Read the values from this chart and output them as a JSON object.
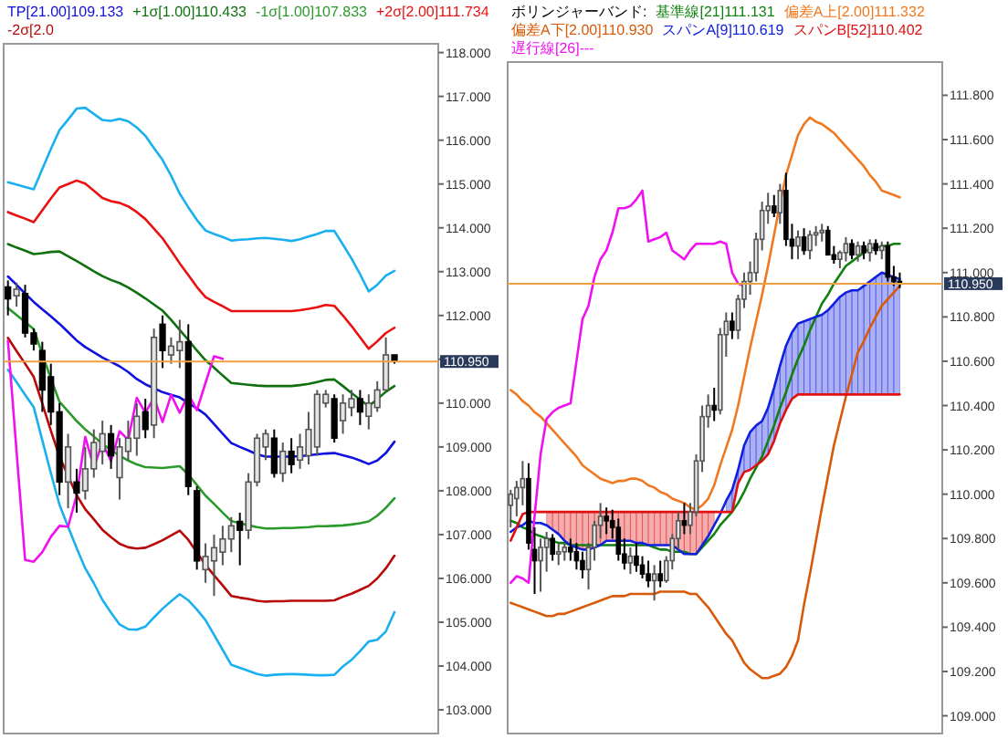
{
  "chart_data": [
    {
      "type": "candlestick",
      "categories": [
        null,
        null,
        null,
        null,
        null,
        null,
        null,
        null,
        null,
        null,
        null,
        null,
        null,
        null,
        null,
        null,
        null,
        null,
        null,
        null,
        null,
        null,
        null,
        null,
        null,
        null,
        null,
        null,
        null,
        null,
        null,
        null,
        null,
        null,
        null,
        null,
        null,
        null,
        null,
        null,
        null,
        null,
        null,
        null,
        null,
        null
      ],
      "ohlc": [
        [
          112.65,
          112.8,
          112.0,
          112.38
        ],
        [
          112.45,
          112.75,
          112.2,
          112.6
        ],
        [
          112.5,
          112.7,
          111.5,
          111.6
        ],
        [
          111.6,
          111.7,
          111.2,
          111.35
        ],
        [
          111.2,
          111.4,
          109.8,
          110.3
        ],
        [
          110.6,
          110.9,
          109.5,
          109.8
        ],
        [
          109.8,
          110.0,
          107.9,
          108.2
        ],
        [
          108.2,
          109.3,
          107.6,
          109.0
        ],
        [
          108.2,
          108.5,
          107.5,
          107.95
        ],
        [
          108.0,
          109.0,
          107.8,
          108.5
        ],
        [
          108.5,
          109.4,
          108.3,
          109.1
        ],
        [
          108.9,
          109.6,
          108.6,
          109.3
        ],
        [
          109.3,
          109.5,
          108.5,
          108.8
        ],
        [
          108.3,
          109.2,
          107.8,
          109.0
        ],
        [
          108.9,
          109.6,
          108.7,
          109.2
        ],
        [
          109.2,
          110.0,
          108.8,
          109.7
        ],
        [
          109.8,
          110.1,
          109.2,
          109.4
        ],
        [
          109.5,
          111.7,
          109.2,
          111.5
        ],
        [
          111.8,
          112.0,
          110.8,
          111.2
        ],
        [
          111.1,
          111.5,
          110.9,
          111.3
        ],
        [
          111.2,
          111.9,
          110.8,
          111.4
        ],
        [
          111.4,
          111.8,
          107.9,
          108.1
        ],
        [
          108.0,
          108.1,
          106.2,
          106.4
        ],
        [
          106.2,
          106.8,
          105.9,
          106.5
        ],
        [
          106.4,
          107.0,
          105.6,
          106.7
        ],
        [
          106.6,
          107.2,
          106.3,
          106.9
        ],
        [
          106.9,
          107.4,
          106.6,
          107.2
        ],
        [
          107.3,
          107.5,
          106.3,
          107.1
        ],
        [
          107.1,
          108.4,
          106.9,
          108.2
        ],
        [
          108.2,
          109.3,
          108.1,
          109.2
        ],
        [
          109.0,
          109.4,
          108.7,
          109.3
        ],
        [
          109.2,
          109.4,
          108.3,
          108.4
        ],
        [
          108.4,
          109.1,
          108.2,
          108.9
        ],
        [
          108.9,
          109.2,
          108.4,
          108.6
        ],
        [
          108.7,
          109.3,
          108.5,
          109.0
        ],
        [
          108.8,
          109.8,
          108.6,
          109.4
        ],
        [
          109.0,
          110.3,
          108.8,
          110.2
        ],
        [
          110.0,
          110.3,
          109.9,
          110.2
        ],
        [
          110.1,
          110.2,
          109.1,
          109.2
        ],
        [
          109.6,
          110.2,
          109.3,
          110.0
        ],
        [
          109.9,
          110.3,
          109.7,
          110.1
        ],
        [
          110.1,
          110.3,
          109.5,
          109.8
        ],
        [
          109.7,
          110.2,
          109.4,
          110.0
        ],
        [
          109.9,
          110.5,
          109.8,
          110.3
        ],
        [
          110.3,
          111.5,
          110.3,
          111.1
        ],
        [
          111.1,
          111.1,
          110.9,
          110.95
        ]
      ],
      "series": [
        {
          "name": "TP[21.00]109.133",
          "type": "line",
          "color": "#1010e0",
          "values": [
            112.89,
            112.7,
            112.5,
            112.31,
            112.14,
            111.98,
            111.81,
            111.62,
            111.43,
            111.28,
            111.16,
            111.04,
            110.94,
            110.84,
            110.71,
            110.55,
            110.43,
            110.34,
            110.25,
            110.19,
            110.13,
            110.0,
            109.88,
            109.74,
            109.52,
            109.3,
            109.09,
            109.0,
            108.92,
            108.83,
            108.78,
            108.78,
            108.78,
            108.78,
            108.79,
            108.81,
            108.83,
            108.85,
            108.86,
            108.81,
            108.76,
            108.69,
            108.61,
            108.69,
            108.86,
            109.12
          ]
        },
        {
          "name": "+1σ[1.00]110.433",
          "type": "line",
          "color": "#107010",
          "values": [
            113.63,
            113.55,
            113.48,
            113.4,
            113.42,
            113.45,
            113.46,
            113.35,
            113.24,
            113.13,
            113.01,
            112.9,
            112.81,
            112.74,
            112.64,
            112.52,
            112.39,
            112.25,
            112.11,
            111.9,
            111.67,
            111.44,
            111.2,
            110.98,
            110.81,
            110.63,
            110.46,
            110.44,
            110.42,
            110.4,
            110.39,
            110.39,
            110.39,
            110.39,
            110.41,
            110.44,
            110.48,
            110.53,
            110.54,
            110.39,
            110.23,
            110.08,
            109.93,
            110.09,
            110.26,
            110.39
          ]
        },
        {
          "name": "-1σ[1.00]107.833",
          "type": "line",
          "color": "#2a9a2a",
          "values": [
            112.17,
            112.01,
            111.85,
            111.69,
            111.12,
            110.56,
            110.03,
            109.81,
            109.59,
            109.4,
            109.24,
            109.07,
            108.93,
            108.8,
            108.69,
            108.6,
            108.54,
            108.53,
            108.52,
            108.54,
            108.56,
            108.37,
            108.13,
            107.89,
            107.7,
            107.5,
            107.31,
            107.26,
            107.21,
            107.17,
            107.14,
            107.14,
            107.15,
            107.15,
            107.16,
            107.17,
            107.19,
            107.19,
            107.2,
            107.21,
            107.23,
            107.26,
            107.3,
            107.43,
            107.61,
            107.83
          ]
        },
        {
          "name": "+2σ[2.00]111.734",
          "type": "line",
          "color": "#e81010",
          "values": [
            114.36,
            114.28,
            114.21,
            114.13,
            114.4,
            114.67,
            114.92,
            115.0,
            115.08,
            115.01,
            114.85,
            114.68,
            114.61,
            114.57,
            114.49,
            114.36,
            114.2,
            113.98,
            113.76,
            113.48,
            113.19,
            112.92,
            112.65,
            112.42,
            112.31,
            112.21,
            112.1,
            112.1,
            112.1,
            112.1,
            112.1,
            112.1,
            112.1,
            112.1,
            112.12,
            112.15,
            112.19,
            112.24,
            112.22,
            112.0,
            111.76,
            111.5,
            111.24,
            111.41,
            111.6,
            111.72
          ]
        },
        {
          "name": "-2σ[2.0",
          "type": "line",
          "color": "#b80808",
          "values": [
            111.49,
            111.19,
            110.9,
            110.6,
            109.99,
            109.37,
            108.78,
            108.34,
            107.9,
            107.58,
            107.35,
            107.11,
            106.94,
            106.79,
            106.71,
            106.68,
            106.7,
            106.78,
            106.87,
            106.98,
            107.09,
            106.88,
            106.59,
            106.31,
            106.07,
            105.84,
            105.6,
            105.56,
            105.53,
            105.49,
            105.47,
            105.48,
            105.48,
            105.49,
            105.49,
            105.49,
            105.49,
            105.49,
            105.5,
            105.58,
            105.65,
            105.74,
            105.83,
            106.0,
            106.23,
            106.52
          ]
        },
        {
          "type": "line",
          "color": "#1ab0f0",
          "values": [
            115.04,
            114.99,
            114.93,
            114.88,
            115.34,
            115.8,
            116.23,
            116.47,
            116.72,
            116.74,
            116.6,
            116.46,
            116.44,
            116.49,
            116.43,
            116.29,
            116.1,
            115.82,
            115.55,
            115.19,
            114.78,
            114.47,
            114.18,
            113.94,
            113.86,
            113.79,
            113.71,
            113.73,
            113.74,
            113.76,
            113.77,
            113.75,
            113.73,
            113.7,
            113.74,
            113.8,
            113.86,
            113.93,
            113.93,
            113.62,
            113.3,
            112.94,
            112.55,
            112.7,
            112.91,
            113.02
          ]
        },
        {
          "type": "line",
          "color": "#1ab0f0",
          "values": [
            110.76,
            110.48,
            110.19,
            109.91,
            109.15,
            108.4,
            107.68,
            107.18,
            106.69,
            106.23,
            105.89,
            105.51,
            105.22,
            104.95,
            104.84,
            104.83,
            104.9,
            105.11,
            105.31,
            105.48,
            105.64,
            105.5,
            105.29,
            105.05,
            104.71,
            104.37,
            104.03,
            103.96,
            103.89,
            103.82,
            103.78,
            103.8,
            103.81,
            103.82,
            103.81,
            103.8,
            103.79,
            103.79,
            103.8,
            103.99,
            104.14,
            104.34,
            104.56,
            104.6,
            104.79,
            105.23
          ]
        },
        {
          "type": "line",
          "color": "#f010f0",
          "values": [
            111.42,
            108.9,
            106.42,
            106.38,
            106.6,
            106.95,
            107.2,
            107.18,
            107.9,
            109.23,
            108.54,
            109.09,
            108.68,
            109.36,
            109.16,
            110.12,
            109.78,
            110.12,
            109.57,
            110.19,
            109.78,
            110.21,
            109.84,
            110.46,
            111.07,
            111.01,
            null,
            null,
            null,
            null,
            null,
            null,
            null,
            null,
            null,
            null,
            null,
            null,
            null,
            null,
            null,
            null,
            null,
            null,
            null,
            null
          ]
        }
      ],
      "ylim": [
        102.46,
        118.2
      ],
      "yticks": [
        {
          "value": 103,
          "label": "103.000"
        },
        {
          "value": 104,
          "label": "104.000"
        },
        {
          "value": 105,
          "label": "105.000"
        },
        {
          "value": 106,
          "label": "106.000"
        },
        {
          "value": 107,
          "label": "107.000"
        },
        {
          "value": 108,
          "label": "108.000"
        },
        {
          "value": 109,
          "label": "109.000"
        },
        {
          "value": 110,
          "label": "110.000"
        },
        {
          "value": 111,
          "label": null
        },
        {
          "value": 112,
          "label": "112.000"
        },
        {
          "value": 113,
          "label": "113.000"
        },
        {
          "value": 114,
          "label": "114.000"
        },
        {
          "value": 115,
          "label": "115.000"
        },
        {
          "value": 116,
          "label": "116.000"
        },
        {
          "value": 117,
          "label": "117.000"
        },
        {
          "value": 118,
          "label": "118.000"
        }
      ],
      "tick_labels": "y",
      "ref_lines": [
        {
          "axis": "y",
          "value": 110.95,
          "label": "110.950",
          "color": "#f0a040"
        }
      ]
    },
    {
      "type": "candlestick",
      "title": "ボリンジャーバンド:",
      "categories": [
        null,
        null,
        null,
        null,
        null,
        null,
        null,
        null,
        null,
        null,
        null,
        null,
        null,
        null,
        null,
        null,
        null,
        null,
        null,
        null,
        null,
        null,
        null,
        null,
        null,
        null,
        null,
        null,
        null,
        null,
        null,
        null,
        null,
        null,
        null,
        null,
        null,
        null,
        null,
        null,
        null,
        null,
        null,
        null,
        null,
        null,
        null,
        null,
        null,
        null,
        null,
        null,
        null,
        null,
        null,
        null,
        null,
        null,
        null,
        null,
        null,
        null,
        null,
        null,
        null,
        null
      ],
      "ohlc": [
        [
          109.95,
          110.02,
          109.85,
          110.0
        ],
        [
          109.98,
          110.06,
          109.9,
          110.03
        ],
        [
          110.03,
          110.15,
          109.95,
          110.07
        ],
        [
          110.07,
          110.14,
          109.75,
          109.78
        ],
        [
          109.75,
          109.85,
          109.55,
          109.7
        ],
        [
          109.7,
          109.8,
          109.56,
          109.76
        ],
        [
          109.76,
          109.83,
          109.65,
          109.8
        ],
        [
          109.8,
          109.82,
          109.7,
          109.73
        ],
        [
          109.73,
          109.78,
          109.68,
          109.74
        ],
        [
          109.74,
          109.78,
          109.7,
          109.76
        ],
        [
          109.76,
          109.8,
          109.7,
          109.74
        ],
        [
          109.74,
          109.78,
          109.66,
          109.7
        ],
        [
          109.7,
          109.74,
          109.62,
          109.66
        ],
        [
          109.66,
          109.78,
          109.57,
          109.76
        ],
        [
          109.76,
          109.88,
          109.7,
          109.86
        ],
        [
          109.86,
          109.96,
          109.8,
          109.9
        ],
        [
          109.9,
          109.94,
          109.82,
          109.88
        ],
        [
          109.88,
          109.93,
          109.8,
          109.85
        ],
        [
          109.85,
          109.89,
          109.7,
          109.73
        ],
        [
          109.73,
          109.8,
          109.66,
          109.69
        ],
        [
          109.69,
          109.76,
          109.64,
          109.72
        ],
        [
          109.72,
          109.78,
          109.65,
          109.68
        ],
        [
          109.68,
          109.72,
          109.62,
          109.64
        ],
        [
          109.64,
          109.7,
          109.58,
          109.61
        ],
        [
          109.61,
          109.68,
          109.52,
          109.64
        ],
        [
          109.64,
          109.7,
          109.58,
          109.61
        ],
        [
          109.61,
          109.72,
          109.6,
          109.7
        ],
        [
          109.7,
          109.82,
          109.66,
          109.8
        ],
        [
          109.8,
          109.92,
          109.75,
          109.88
        ],
        [
          109.88,
          109.96,
          109.82,
          109.86
        ],
        [
          109.86,
          109.96,
          109.82,
          109.92
        ],
        [
          109.92,
          110.18,
          109.9,
          110.15
        ],
        [
          110.15,
          110.4,
          110.1,
          110.35
        ],
        [
          110.35,
          110.45,
          110.3,
          110.4
        ],
        [
          110.4,
          110.48,
          110.33,
          110.38
        ],
        [
          110.38,
          110.75,
          110.36,
          110.72
        ],
        [
          110.72,
          110.82,
          110.62,
          110.78
        ],
        [
          110.78,
          110.82,
          110.7,
          110.74
        ],
        [
          110.74,
          110.9,
          110.7,
          110.88
        ],
        [
          110.88,
          111.0,
          110.84,
          110.96
        ],
        [
          110.96,
          111.05,
          110.9,
          111.0
        ],
        [
          111.0,
          111.18,
          110.96,
          111.15
        ],
        [
          111.15,
          111.32,
          111.1,
          111.28
        ],
        [
          111.28,
          111.36,
          111.22,
          111.3
        ],
        [
          111.3,
          111.35,
          111.25,
          111.27
        ],
        [
          111.27,
          111.4,
          111.22,
          111.37
        ],
        [
          111.37,
          111.45,
          111.12,
          111.15
        ],
        [
          111.15,
          111.22,
          111.06,
          111.12
        ],
        [
          111.12,
          111.19,
          111.06,
          111.16
        ],
        [
          111.16,
          111.2,
          111.08,
          111.1
        ],
        [
          111.1,
          111.19,
          111.06,
          111.17
        ],
        [
          111.17,
          111.21,
          111.12,
          111.18
        ],
        [
          111.18,
          111.22,
          111.14,
          111.19
        ],
        [
          111.19,
          111.21,
          111.08,
          111.08
        ],
        [
          111.08,
          111.12,
          111.04,
          111.06
        ],
        [
          111.06,
          111.1,
          111.02,
          111.09
        ],
        [
          111.09,
          111.16,
          111.05,
          111.13
        ],
        [
          111.13,
          111.15,
          111.06,
          111.08
        ],
        [
          111.08,
          111.14,
          111.05,
          111.12
        ],
        [
          111.12,
          111.14,
          111.06,
          111.09
        ],
        [
          111.09,
          111.15,
          111.05,
          111.13
        ],
        [
          111.13,
          111.15,
          111.08,
          111.1
        ],
        [
          111.1,
          111.14,
          111.06,
          111.12
        ],
        [
          111.12,
          111.14,
          110.96,
          110.98
        ],
        [
          110.98,
          111.03,
          110.94,
          110.96
        ],
        [
          110.96,
          111.0,
          110.93,
          110.95
        ]
      ],
      "series": [
        {
          "name": "基準線[21]111.131",
          "type": "line",
          "color": "#108010",
          "values": [
            109.88,
            109.87,
            109.85,
            109.84,
            109.82,
            109.81,
            109.8,
            109.79,
            109.78,
            109.78,
            109.77,
            109.77,
            109.77,
            109.77,
            109.77,
            109.77,
            109.77,
            109.77,
            109.77,
            109.77,
            109.77,
            109.77,
            109.77,
            109.77,
            109.76,
            109.75,
            109.75,
            109.74,
            109.74,
            109.74,
            109.73,
            109.73,
            109.76,
            109.79,
            109.82,
            109.86,
            109.89,
            109.92,
            109.96,
            110.01,
            110.07,
            110.12,
            110.17,
            110.24,
            110.31,
            110.39,
            110.46,
            110.54,
            110.61,
            110.67,
            110.74,
            110.8,
            110.86,
            110.9,
            110.95,
            110.99,
            111.03,
            111.05,
            111.07,
            111.09,
            111.11,
            111.11,
            111.12,
            111.12,
            111.13,
            111.13
          ]
        },
        {
          "name": "偏差A上[2.00]111.332",
          "type": "line",
          "color": "#f07820",
          "values": [
            110.47,
            110.45,
            110.42,
            110.4,
            110.37,
            110.35,
            110.32,
            110.29,
            110.26,
            110.23,
            110.2,
            110.17,
            110.13,
            110.11,
            110.09,
            110.07,
            110.06,
            110.05,
            110.06,
            110.06,
            110.07,
            110.07,
            110.06,
            110.04,
            110.03,
            110.01,
            110.0,
            109.98,
            109.97,
            109.96,
            109.94,
            109.93,
            109.95,
            109.98,
            110.04,
            110.13,
            110.21,
            110.29,
            110.4,
            110.53,
            110.66,
            110.78,
            110.9,
            111.03,
            111.17,
            111.31,
            111.44,
            111.53,
            111.62,
            111.67,
            111.7,
            111.68,
            111.67,
            111.65,
            111.63,
            111.6,
            111.57,
            111.54,
            111.51,
            111.48,
            111.44,
            111.41,
            111.37,
            111.36,
            111.35,
            111.34
          ]
        },
        {
          "name": "偏差A下[2.00]110.930",
          "type": "line",
          "color": "#d85a08",
          "values": [
            109.51,
            109.5,
            109.49,
            109.48,
            109.47,
            109.46,
            109.45,
            109.45,
            109.46,
            109.46,
            109.47,
            109.48,
            109.49,
            109.5,
            109.51,
            109.52,
            109.53,
            109.54,
            109.54,
            109.54,
            109.55,
            109.55,
            109.55,
            109.55,
            109.55,
            109.56,
            109.56,
            109.56,
            109.56,
            109.56,
            109.55,
            109.55,
            109.52,
            109.49,
            109.45,
            109.41,
            109.37,
            109.34,
            109.29,
            109.24,
            109.21,
            109.19,
            109.17,
            109.17,
            109.18,
            109.19,
            109.22,
            109.27,
            109.34,
            109.5,
            109.64,
            109.79,
            109.94,
            110.08,
            110.22,
            110.33,
            110.44,
            110.54,
            110.64,
            110.69,
            110.75,
            110.8,
            110.85,
            110.88,
            110.91,
            110.94
          ]
        },
        {
          "name": "スパンA[9]110.619",
          "type": "line",
          "color": "#1020e0",
          "values": [
            109.83,
            109.85,
            109.86,
            109.88,
            109.87,
            109.87,
            109.86,
            109.84,
            109.82,
            109.79,
            109.77,
            109.76,
            109.75,
            109.75,
            109.76,
            109.77,
            109.79,
            109.79,
            109.79,
            109.79,
            109.79,
            109.78,
            109.78,
            109.77,
            109.77,
            109.77,
            109.77,
            109.77,
            109.75,
            109.73,
            109.73,
            109.73,
            109.77,
            109.81,
            109.86,
            109.91,
            109.97,
            110.02,
            110.11,
            110.22,
            110.28,
            110.31,
            110.33,
            110.39,
            110.48,
            110.58,
            110.67,
            110.73,
            110.77,
            110.78,
            110.79,
            110.8,
            110.81,
            110.83,
            110.86,
            110.89,
            110.91,
            110.92,
            110.92,
            110.94,
            110.96,
            110.98,
            111.0,
            110.99,
            110.98,
            110.97
          ],
          "lower": [
            null,
            null,
            null,
            null,
            null,
            null,
            null,
            null,
            null,
            null,
            null,
            null,
            null,
            null,
            null,
            null,
            null,
            null,
            null,
            null,
            null,
            null,
            null,
            null,
            null,
            null,
            null,
            null,
            null,
            null,
            null,
            null,
            null,
            null,
            null,
            null,
            109.92,
            109.92,
            110.05,
            110.1,
            110.11,
            110.13,
            110.15,
            110.18,
            110.24,
            110.32,
            110.38,
            110.43,
            110.45,
            110.45,
            110.45,
            110.45,
            110.45,
            110.45,
            110.45,
            110.45,
            110.45,
            110.45,
            110.45,
            110.45,
            110.45,
            110.45,
            110.45,
            110.45,
            110.45,
            110.45
          ],
          "upper": [
            null,
            null,
            null,
            null,
            null,
            null,
            null,
            null,
            null,
            null,
            null,
            null,
            null,
            null,
            null,
            null,
            null,
            null,
            null,
            null,
            null,
            null,
            null,
            null,
            null,
            null,
            null,
            null,
            null,
            null,
            null,
            null,
            null,
            null,
            null,
            null,
            109.97,
            110.02,
            110.11,
            110.22,
            110.28,
            110.31,
            110.33,
            110.39,
            110.48,
            110.58,
            110.67,
            110.73,
            110.77,
            110.78,
            110.79,
            110.8,
            110.81,
            110.83,
            110.86,
            110.89,
            110.91,
            110.92,
            110.92,
            110.94,
            110.96,
            110.98,
            111.0,
            110.99,
            110.98,
            110.97
          ]
        },
        {
          "name": "スパンB[52]110.402",
          "type": "line",
          "color": "#e01010",
          "values": [
            109.79,
            109.85,
            109.91,
            109.92,
            109.92,
            109.92,
            109.92,
            109.92,
            109.92,
            109.92,
            109.92,
            109.92,
            109.92,
            109.92,
            109.92,
            109.92,
            109.92,
            109.92,
            109.92,
            109.92,
            109.92,
            109.92,
            109.92,
            109.92,
            109.92,
            109.92,
            109.92,
            109.92,
            109.92,
            109.92,
            109.92,
            109.92,
            109.92,
            109.92,
            109.92,
            109.92,
            109.92,
            109.92,
            110.05,
            110.1,
            110.11,
            110.13,
            110.15,
            110.18,
            110.24,
            110.32,
            110.38,
            110.43,
            110.45,
            110.45,
            110.45,
            110.45,
            110.45,
            110.45,
            110.45,
            110.45,
            110.45,
            110.45,
            110.45,
            110.45,
            110.45,
            110.45,
            110.45,
            110.45,
            110.45,
            110.45
          ],
          "lower": [
            null,
            null,
            null,
            null,
            null,
            null,
            109.86,
            109.84,
            109.82,
            109.79,
            109.77,
            109.76,
            109.75,
            109.75,
            109.76,
            109.77,
            109.79,
            109.79,
            109.79,
            109.79,
            109.79,
            109.78,
            109.78,
            109.77,
            109.77,
            109.77,
            109.77,
            109.77,
            109.75,
            109.73,
            109.73,
            109.73,
            109.77,
            109.81,
            109.86,
            null,
            null,
            null,
            null,
            null,
            null,
            null,
            null,
            null,
            null,
            null,
            null,
            null,
            null,
            null,
            null,
            null,
            null,
            null,
            null,
            null,
            null,
            null,
            null,
            null,
            null,
            null,
            null,
            null,
            null,
            null
          ],
          "upper": [
            null,
            null,
            null,
            null,
            null,
            null,
            109.92,
            109.92,
            109.92,
            109.92,
            109.92,
            109.92,
            109.92,
            109.92,
            109.92,
            109.92,
            109.92,
            109.92,
            109.92,
            109.92,
            109.92,
            109.92,
            109.92,
            109.92,
            109.92,
            109.92,
            109.92,
            109.92,
            109.92,
            109.92,
            109.92,
            109.92,
            109.92,
            109.92,
            109.92,
            null,
            null,
            null,
            null,
            null,
            null,
            null,
            null,
            null,
            null,
            null,
            null,
            null,
            null,
            null,
            null,
            null,
            null,
            null,
            null,
            null,
            null,
            null,
            null,
            null,
            null,
            null,
            null,
            null,
            null,
            null
          ]
        },
        {
          "name": "遅行線[26]---",
          "type": "line",
          "color": "#f010f0",
          "values": [
            109.6,
            109.63,
            109.62,
            109.6,
            109.9,
            110.18,
            110.34,
            110.37,
            110.39,
            110.4,
            110.41,
            110.6,
            110.79,
            110.85,
            110.98,
            111.06,
            111.1,
            111.18,
            111.29,
            111.29,
            111.3,
            111.33,
            111.37,
            111.14,
            111.15,
            111.16,
            111.18,
            111.1,
            111.08,
            111.06,
            111.1,
            111.13,
            111.13,
            111.13,
            111.13,
            111.14,
            111.13,
            111.0,
            110.95,
            110.94,
            null,
            null,
            null,
            null,
            null,
            null,
            null,
            null,
            null,
            null,
            null,
            null,
            null,
            null,
            null,
            null,
            null,
            null,
            null,
            null,
            null,
            null,
            null,
            null,
            null,
            null
          ]
        }
      ],
      "ylim": [
        108.92,
        111.95
      ],
      "yticks": [
        {
          "value": 109.0,
          "label": "109.000"
        },
        {
          "value": 109.2,
          "label": "109.200"
        },
        {
          "value": 109.4,
          "label": "109.400"
        },
        {
          "value": 109.6,
          "label": "109.600"
        },
        {
          "value": 109.8,
          "label": "109.800"
        },
        {
          "value": 110.0,
          "label": "110.000"
        },
        {
          "value": 110.2,
          "label": "110.200"
        },
        {
          "value": 110.4,
          "label": "110.400"
        },
        {
          "value": 110.6,
          "label": "110.600"
        },
        {
          "value": 110.8,
          "label": "110.800"
        },
        {
          "value": 111.0,
          "label": "111.000"
        },
        {
          "value": 111.2,
          "label": "111.200"
        },
        {
          "value": 111.4,
          "label": "111.400"
        },
        {
          "value": 111.6,
          "label": "111.600"
        },
        {
          "value": 111.8,
          "label": "111.800"
        }
      ],
      "tick_labels": "y",
      "ref_lines": [
        {
          "axis": "y",
          "value": 110.95,
          "label": "110.950",
          "color": "#f0a040"
        }
      ]
    }
  ]
}
